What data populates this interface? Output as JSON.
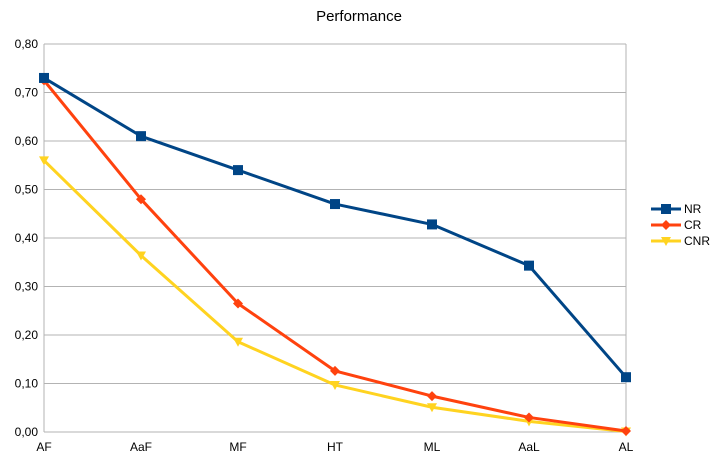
{
  "chart_data": {
    "type": "line",
    "title": "Performance",
    "xlabel": "",
    "ylabel": "",
    "categories": [
      "AF",
      "AaF",
      "MF",
      "HT",
      "ML",
      "AaL",
      "AL"
    ],
    "ylim": [
      0,
      0.8
    ],
    "y_ticks": [
      0,
      0.1,
      0.2,
      0.3,
      0.4,
      0.5,
      0.6,
      0.7,
      0.8
    ],
    "y_tick_labels": [
      "0,00",
      "0,10",
      "0,20",
      "0,30",
      "0,40",
      "0,50",
      "0,60",
      "0,70",
      "0,80"
    ],
    "grid": true,
    "legend_position": "right",
    "series": [
      {
        "name": "NR",
        "color": "#004586",
        "marker": "square",
        "values": [
          0.73,
          0.61,
          0.54,
          0.47,
          0.428,
          0.343,
          0.113
        ]
      },
      {
        "name": "CR",
        "color": "#ff420e",
        "marker": "diamond",
        "values": [
          0.725,
          0.48,
          0.265,
          0.126,
          0.074,
          0.03,
          0.002
        ]
      },
      {
        "name": "CNR",
        "color": "#ffd320",
        "marker": "triangle-down",
        "values": [
          0.56,
          0.364,
          0.186,
          0.097,
          0.051,
          0.022,
          0.001
        ]
      }
    ]
  }
}
